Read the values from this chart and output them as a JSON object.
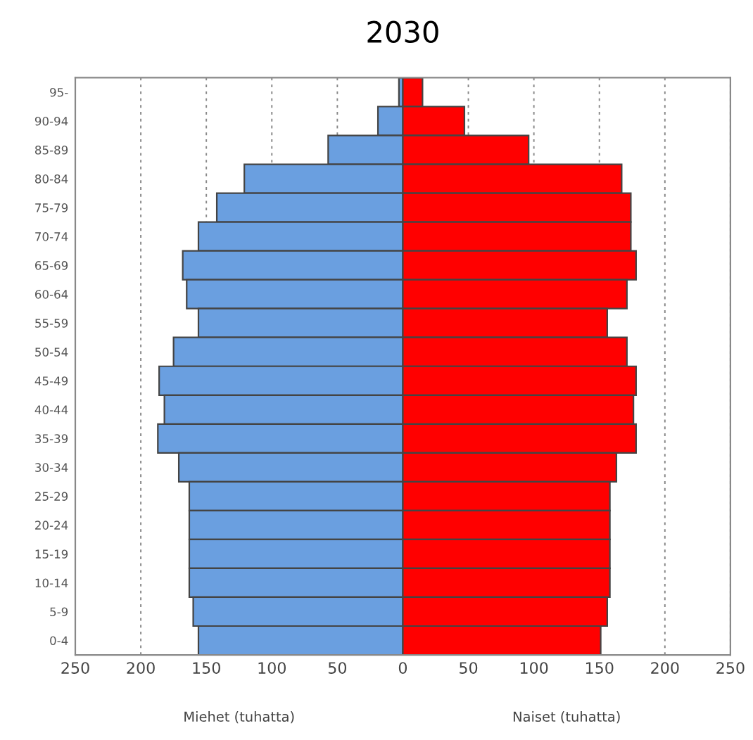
{
  "chart_data": {
    "type": "bar",
    "orientation": "horizontal",
    "stacked": true,
    "title": "2030",
    "categories": [
      "95-",
      "90-94",
      "85-89",
      "80-84",
      "75-79",
      "70-74",
      "65-69",
      "60-64",
      "55-59",
      "50-54",
      "45-49",
      "40-44",
      "35-39",
      "30-34",
      "25-29",
      "20-24",
      "15-19",
      "10-14",
      "5-9",
      "0-4"
    ],
    "series": [
      {
        "color": "#6a9fe0",
        "values": [
          -3,
          -19,
          -57,
          -121,
          -142,
          -156,
          -168,
          -165,
          -156,
          -175,
          -186,
          -182,
          -187,
          -171,
          -163,
          -163,
          -163,
          -163,
          -160,
          -156
        ]
      },
      {
        "color": "#ff0000",
        "values": [
          15,
          47,
          96,
          167,
          174,
          174,
          178,
          171,
          156,
          171,
          178,
          176,
          178,
          163,
          158,
          158,
          158,
          158,
          156,
          151
        ]
      }
    ],
    "xlim": [
      -250,
      250
    ],
    "xticks": [
      {
        "value": -250,
        "label": "250"
      },
      {
        "value": -200,
        "label": "200"
      },
      {
        "value": -150,
        "label": "150"
      },
      {
        "value": -100,
        "label": "100"
      },
      {
        "value": -50,
        "label": "50"
      },
      0,
      50,
      100,
      150,
      200,
      250
    ],
    "grid": "x",
    "annotations": [
      "Miehet (tuhatta)",
      "Naiset (tuhatta)"
    ]
  }
}
